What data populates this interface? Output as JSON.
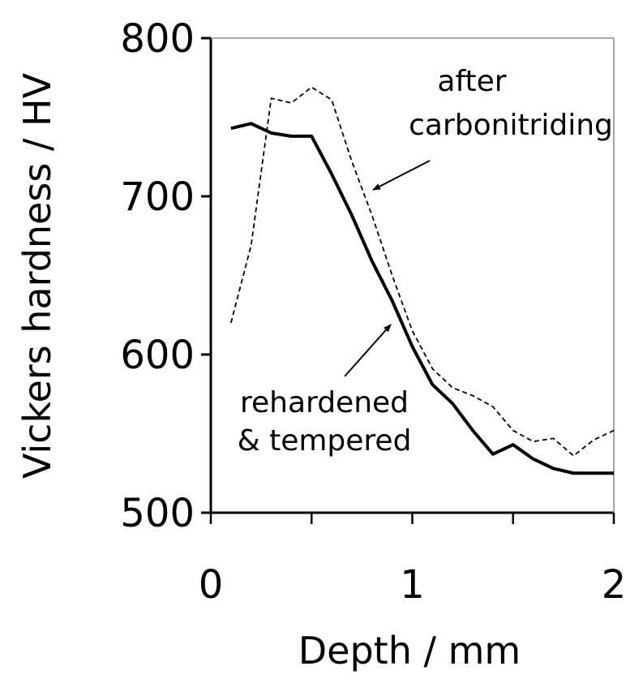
{
  "chart_data": {
    "type": "line",
    "xlabel": "Depth / mm",
    "ylabel": "Vickers hardness / HV",
    "xlim": [
      0,
      2
    ],
    "ylim": [
      500,
      800
    ],
    "xticks": [
      "0",
      "1",
      "2"
    ],
    "yticks": [
      "500",
      "600",
      "700",
      "800"
    ],
    "grid": false,
    "series": [
      {
        "name": "rehardened & tempered",
        "label_lines": [
          "rehardened",
          "& tempered"
        ],
        "style": "solid",
        "color": "#000000",
        "x": [
          0.1,
          0.2,
          0.3,
          0.4,
          0.5,
          0.6,
          0.7,
          0.8,
          0.9,
          1.0,
          1.1,
          1.2,
          1.3,
          1.4,
          1.5,
          1.6,
          1.7,
          1.8,
          1.9,
          2.0
        ],
        "y": [
          743,
          746,
          740,
          738,
          738,
          714,
          688,
          659,
          634,
          605,
          581,
          569,
          552,
          537,
          543,
          534,
          528,
          525,
          525,
          525
        ]
      },
      {
        "name": "after carbonitriding",
        "label_lines": [
          "after",
          "carbonitriding"
        ],
        "style": "dashed",
        "color": "#000000",
        "x": [
          0.1,
          0.2,
          0.3,
          0.4,
          0.5,
          0.6,
          0.7,
          0.8,
          0.9,
          1.0,
          1.1,
          1.2,
          1.3,
          1.4,
          1.5,
          1.6,
          1.7,
          1.8,
          1.9,
          2.0
        ],
        "y": [
          620,
          669,
          762,
          759,
          769,
          761,
          722,
          688,
          650,
          615,
          591,
          579,
          574,
          567,
          552,
          545,
          547,
          536,
          546,
          552
        ]
      }
    ]
  }
}
